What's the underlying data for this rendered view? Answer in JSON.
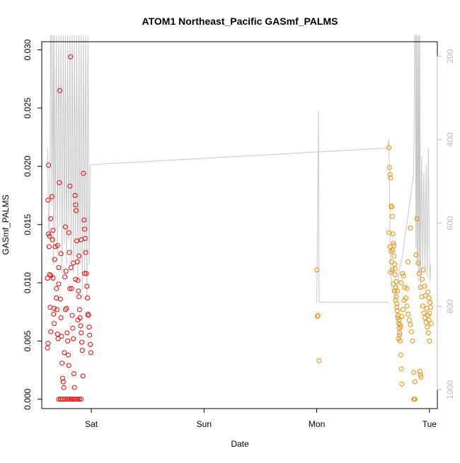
{
  "chart_data": {
    "type": "scatter",
    "title": "ATOM1 Northeast_Pacific GASmf_PALMS",
    "xlabel": "Date",
    "ylabel": "GASmf_PALMS",
    "x_ticks": [
      "Sat",
      "Sun",
      "Mon",
      "Tue"
    ],
    "x_range_days": [
      -0.44,
      3.07
    ],
    "ylim": [
      -0.0008,
      0.0307
    ],
    "y_ticks": [
      "0.000",
      "0.005",
      "0.010",
      "0.015",
      "0.020",
      "0.025",
      "0.030"
    ],
    "y_tick_values": [
      0,
      0.005,
      0.01,
      0.015,
      0.02,
      0.025,
      0.03
    ],
    "right_axis": {
      "ticks": [
        "200",
        "400",
        "600",
        "800",
        "1000"
      ],
      "values": [
        200,
        400,
        600,
        800,
        1000
      ],
      "range_top": 165,
      "range_bottom": 1045,
      "color": "#bbbbbb"
    },
    "grid": false,
    "series": [
      {
        "color": "#ee0000",
        "points": [
          [
            -0.39,
            0.0104
          ],
          [
            -0.385,
            0.0171
          ],
          [
            -0.38,
            0.0142
          ],
          [
            -0.375,
            0.0131
          ],
          [
            -0.37,
            0.0107
          ],
          [
            -0.365,
            0.0079
          ],
          [
            -0.36,
            0.0058
          ],
          [
            -0.385,
            0.0048
          ],
          [
            -0.39,
            0.0044
          ],
          [
            -0.38,
            0.0201
          ],
          [
            -0.37,
            0.014
          ],
          [
            -0.36,
            0.0106
          ],
          [
            -0.35,
            0.0174
          ],
          [
            -0.345,
            0.0137
          ],
          [
            -0.34,
            0.0104
          ],
          [
            -0.335,
            0.0073
          ],
          [
            -0.33,
            0.0065
          ],
          [
            -0.325,
            0.012
          ],
          [
            -0.32,
            0.0131
          ],
          [
            -0.31,
            0.0087
          ],
          [
            -0.305,
            0.0077
          ],
          [
            -0.3,
            0.0056
          ],
          [
            -0.295,
            0.0052
          ],
          [
            -0.29,
            0.0113
          ],
          [
            -0.285,
            0.0186
          ],
          [
            -0.28,
            0.0265
          ],
          [
            -0.275,
            0.0086
          ],
          [
            -0.27,
            0.007
          ],
          [
            -0.265,
            0.0054
          ],
          [
            -0.26,
            0.0031
          ],
          [
            -0.255,
            0.0018
          ],
          [
            -0.25,
            0.0015
          ],
          [
            -0.245,
            0.001
          ],
          [
            -0.24,
            0.004
          ],
          [
            -0.235,
            0.0105
          ],
          [
            -0.23,
            0.0148
          ],
          [
            -0.225,
            0.011
          ],
          [
            -0.22,
            0.0078
          ],
          [
            -0.215,
            0.0057
          ],
          [
            -0.21,
            0.005
          ],
          [
            -0.205,
            0.0038
          ],
          [
            -0.2,
            0.0029
          ],
          [
            -0.195,
            0.0126
          ],
          [
            -0.19,
            0.0183
          ],
          [
            -0.185,
            0.0294
          ],
          [
            -0.18,
            0.0113
          ],
          [
            -0.175,
            0.0095
          ],
          [
            -0.17,
            0.0072
          ],
          [
            -0.165,
            0.0061
          ],
          [
            -0.16,
            0.0052
          ],
          [
            -0.155,
            0.0022
          ],
          [
            -0.15,
            0.001
          ],
          [
            -0.145,
            0.0175
          ],
          [
            -0.14,
            0.0167
          ],
          [
            -0.135,
            0.0162
          ],
          [
            -0.13,
            0.0136
          ],
          [
            -0.125,
            0.0118
          ],
          [
            -0.12,
            0.0102
          ],
          [
            -0.115,
            0.0093
          ],
          [
            -0.11,
            0.0088
          ],
          [
            -0.105,
            0.0077
          ],
          [
            -0.1,
            0.007
          ],
          [
            -0.095,
            0.0063
          ],
          [
            -0.09,
            0.0057
          ],
          [
            -0.085,
            0.0049
          ],
          [
            -0.08,
            0.0042
          ],
          [
            -0.075,
            0.002
          ],
          [
            -0.07,
            0.0194
          ],
          [
            -0.065,
            0.0154
          ],
          [
            -0.06,
            0.0146
          ],
          [
            -0.055,
            0.0138
          ],
          [
            -0.05,
            0.0126
          ],
          [
            -0.045,
            0.0108
          ],
          [
            -0.04,
            0.0097
          ],
          [
            -0.035,
            0.0087
          ],
          [
            -0.03,
            0.0073
          ],
          [
            -0.025,
            0.0072
          ],
          [
            -0.02,
            0.0062
          ],
          [
            -0.015,
            0.0055
          ],
          [
            -0.01,
            0.0047
          ],
          [
            -0.005,
            0.004
          ],
          [
            -0.33,
            0.0078
          ],
          [
            -0.31,
            0.0095
          ],
          [
            -0.27,
            0.0125
          ],
          [
            -0.2,
            0.0143
          ],
          [
            -0.16,
            0.0117
          ],
          [
            -0.11,
            0.0123
          ],
          [
            -0.09,
            0.0137
          ],
          [
            -0.06,
            0.0108
          ],
          [
            -0.36,
            0.0155
          ],
          [
            -0.34,
            0.0145
          ],
          [
            -0.3,
            0.0132
          ],
          [
            -0.29,
            0.0099
          ],
          [
            -0.23,
            0.0077
          ],
          [
            -0.19,
            0.0095
          ],
          [
            -0.14,
            0.0103
          ],
          [
            -0.12,
            0.0068
          ],
          [
            -0.29,
            0.0
          ],
          [
            -0.275,
            0.0
          ],
          [
            -0.26,
            0.0
          ],
          [
            -0.24,
            0.0
          ],
          [
            -0.225,
            0.0
          ],
          [
            -0.21,
            0.0
          ],
          [
            -0.195,
            0.0
          ],
          [
            -0.18,
            0.0
          ],
          [
            -0.165,
            0.0
          ],
          [
            -0.15,
            0.0
          ],
          [
            -0.135,
            0.0
          ],
          [
            -0.12,
            0.0
          ],
          [
            -0.105,
            0.0
          ],
          [
            -0.09,
            0.0
          ]
        ]
      },
      {
        "color": "#f08c00",
        "points": [
          [
            2.0,
            0.0111
          ],
          [
            2.01,
            0.0072
          ],
          [
            2.005,
            0.0071
          ],
          [
            2.02,
            0.0033
          ],
          [
            2.64,
            0.0216
          ],
          [
            2.645,
            0.0199
          ],
          [
            2.65,
            0.0193
          ],
          [
            2.655,
            0.019
          ],
          [
            2.66,
            0.0166
          ],
          [
            2.665,
            0.0165
          ],
          [
            2.67,
            0.0157
          ],
          [
            2.675,
            0.0142
          ],
          [
            2.68,
            0.0134
          ],
          [
            2.685,
            0.0123
          ],
          [
            2.69,
            0.0116
          ],
          [
            2.695,
            0.0107
          ],
          [
            2.7,
            0.0096
          ],
          [
            2.705,
            0.0088
          ],
          [
            2.71,
            0.0082
          ],
          [
            2.715,
            0.0076
          ],
          [
            2.72,
            0.007
          ],
          [
            2.725,
            0.0065
          ],
          [
            2.73,
            0.0061
          ],
          [
            2.735,
            0.0055
          ],
          [
            2.74,
            0.005
          ],
          [
            2.745,
            0.0038
          ],
          [
            2.75,
            0.0026
          ],
          [
            2.755,
            0.0013
          ],
          [
            2.64,
            0.0143
          ],
          [
            2.65,
            0.0131
          ],
          [
            2.66,
            0.0127
          ],
          [
            2.67,
            0.0111
          ],
          [
            2.68,
            0.0099
          ],
          [
            2.69,
            0.0093
          ],
          [
            2.7,
            0.0085
          ],
          [
            2.71,
            0.0079
          ],
          [
            2.72,
            0.0072
          ],
          [
            2.73,
            0.0068
          ],
          [
            2.74,
            0.0064
          ],
          [
            2.75,
            0.01
          ],
          [
            2.76,
            0.0108
          ],
          [
            2.77,
            0.0106
          ],
          [
            2.78,
            0.0096
          ],
          [
            2.79,
            0.0087
          ],
          [
            2.8,
            0.008
          ],
          [
            2.81,
            0.0073
          ],
          [
            2.82,
            0.0068
          ],
          [
            2.83,
            0.0064
          ],
          [
            2.84,
            0.0058
          ],
          [
            2.85,
            0.005
          ],
          [
            2.86,
            0.0023
          ],
          [
            2.87,
            0.0015
          ],
          [
            2.88,
            0.0124
          ],
          [
            2.89,
            0.0155
          ],
          [
            2.9,
            0.0117
          ],
          [
            2.91,
            0.0108
          ],
          [
            2.92,
            0.0096
          ],
          [
            2.93,
            0.0088
          ],
          [
            2.94,
            0.008
          ],
          [
            2.95,
            0.0074
          ],
          [
            2.96,
            0.007
          ],
          [
            2.97,
            0.0066
          ],
          [
            2.98,
            0.0062
          ],
          [
            2.99,
            0.0057
          ],
          [
            3.0,
            0.005
          ],
          [
            2.985,
            0.0092
          ],
          [
            2.995,
            0.0087
          ],
          [
            3.005,
            0.0083
          ],
          [
            3.01,
            0.0079
          ],
          [
            3.015,
            0.0065
          ],
          [
            2.92,
            0.0021
          ],
          [
            2.915,
            0.0024
          ],
          [
            2.925,
            0.0019
          ],
          [
            2.86,
            0.0
          ],
          [
            2.865,
            0.0
          ],
          [
            2.87,
            0.0
          ],
          [
            2.83,
            0.0147
          ],
          [
            2.81,
            0.0118
          ],
          [
            2.8,
            0.0095
          ],
          [
            2.775,
            0.0085
          ],
          [
            2.765,
            0.0077
          ],
          [
            2.755,
            0.0071
          ],
          [
            2.745,
            0.0062
          ],
          [
            2.735,
            0.0057
          ],
          [
            2.725,
            0.0052
          ],
          [
            2.715,
            0.0093
          ],
          [
            2.705,
            0.0101
          ],
          [
            2.695,
            0.0112
          ],
          [
            2.685,
            0.0132
          ],
          [
            2.675,
            0.0128
          ],
          [
            2.665,
            0.0118
          ],
          [
            2.655,
            0.0109
          ],
          [
            2.935,
            0.0103
          ],
          [
            2.945,
            0.0111
          ],
          [
            2.955,
            0.0097
          ],
          [
            2.965,
            0.0089
          ],
          [
            2.975,
            0.0078
          ],
          [
            2.985,
            0.0072
          ],
          [
            2.995,
            0.0068
          ],
          [
            3.0,
            0.0074
          ]
        ]
      }
    ],
    "altitude_trace": {
      "color": "#c8c8c8",
      "points": [
        [
          -0.39,
          420
        ],
        [
          -0.385,
          470
        ],
        [
          -0.38,
          610
        ],
        [
          -0.37,
          640
        ],
        [
          -0.36,
          150
        ],
        [
          -0.355,
          150
        ],
        [
          -0.35,
          560
        ],
        [
          -0.34,
          150
        ],
        [
          -0.335,
          700
        ],
        [
          -0.33,
          150
        ],
        [
          -0.32,
          620
        ],
        [
          -0.31,
          150
        ],
        [
          -0.3,
          680
        ],
        [
          -0.29,
          150
        ],
        [
          -0.28,
          610
        ],
        [
          -0.27,
          150
        ],
        [
          -0.26,
          720
        ],
        [
          -0.25,
          150
        ],
        [
          -0.24,
          650
        ],
        [
          -0.23,
          150
        ],
        [
          -0.22,
          700
        ],
        [
          -0.21,
          150
        ],
        [
          -0.2,
          640
        ],
        [
          -0.19,
          150
        ],
        [
          -0.18,
          690
        ],
        [
          -0.17,
          150
        ],
        [
          -0.16,
          720
        ],
        [
          -0.15,
          150
        ],
        [
          -0.14,
          680
        ],
        [
          -0.13,
          150
        ],
        [
          -0.12,
          740
        ],
        [
          -0.11,
          150
        ],
        [
          -0.1,
          700
        ],
        [
          -0.09,
          150
        ],
        [
          -0.08,
          760
        ],
        [
          -0.07,
          150
        ],
        [
          -0.06,
          720
        ],
        [
          -0.05,
          150
        ],
        [
          -0.04,
          780
        ],
        [
          -0.03,
          150
        ],
        [
          -0.02,
          700
        ],
        [
          -0.01,
          460
        ],
        [
          2.63,
          420
        ],
        [
          2.64,
          400
        ],
        [
          2.645,
          480
        ],
        [
          2.65,
          660
        ],
        [
          2.655,
          690
        ],
        [
          2.66,
          740
        ],
        [
          2.67,
          760
        ],
        [
          2.68,
          760
        ],
        [
          2.69,
          780
        ],
        [
          2.7,
          780
        ],
        [
          2.71,
          760
        ],
        [
          2.72,
          740
        ],
        [
          2.73,
          720
        ],
        [
          2.74,
          700
        ],
        [
          2.75,
          690
        ],
        [
          2.76,
          680
        ],
        [
          2.77,
          660
        ],
        [
          2.78,
          640
        ],
        [
          2.79,
          620
        ],
        [
          2.8,
          600
        ],
        [
          2.81,
          580
        ],
        [
          2.82,
          560
        ],
        [
          2.83,
          540
        ],
        [
          2.84,
          520
        ],
        [
          2.85,
          500
        ],
        [
          2.86,
          480
        ],
        [
          2.87,
          150
        ],
        [
          2.875,
          150
        ],
        [
          2.88,
          660
        ],
        [
          2.885,
          150
        ],
        [
          2.89,
          700
        ],
        [
          2.895,
          150
        ],
        [
          2.9,
          740
        ],
        [
          2.905,
          150
        ],
        [
          2.91,
          720
        ],
        [
          2.915,
          150
        ],
        [
          2.92,
          760
        ],
        [
          2.93,
          440
        ],
        [
          2.94,
          710
        ],
        [
          2.95,
          480
        ],
        [
          2.96,
          720
        ],
        [
          2.97,
          460
        ],
        [
          2.98,
          730
        ],
        [
          2.99,
          420
        ],
        [
          3.0,
          690
        ],
        [
          3.005,
          740
        ],
        [
          3.01,
          700
        ]
      ],
      "connector": [
        [
          -0.01,
          460
        ],
        [
          2.63,
          420
        ]
      ],
      "mid_segment": [
        [
          2.0,
          790
        ],
        [
          2.015,
          330
        ],
        [
          2.02,
          790
        ],
        [
          2.64,
          790
        ]
      ]
    }
  }
}
